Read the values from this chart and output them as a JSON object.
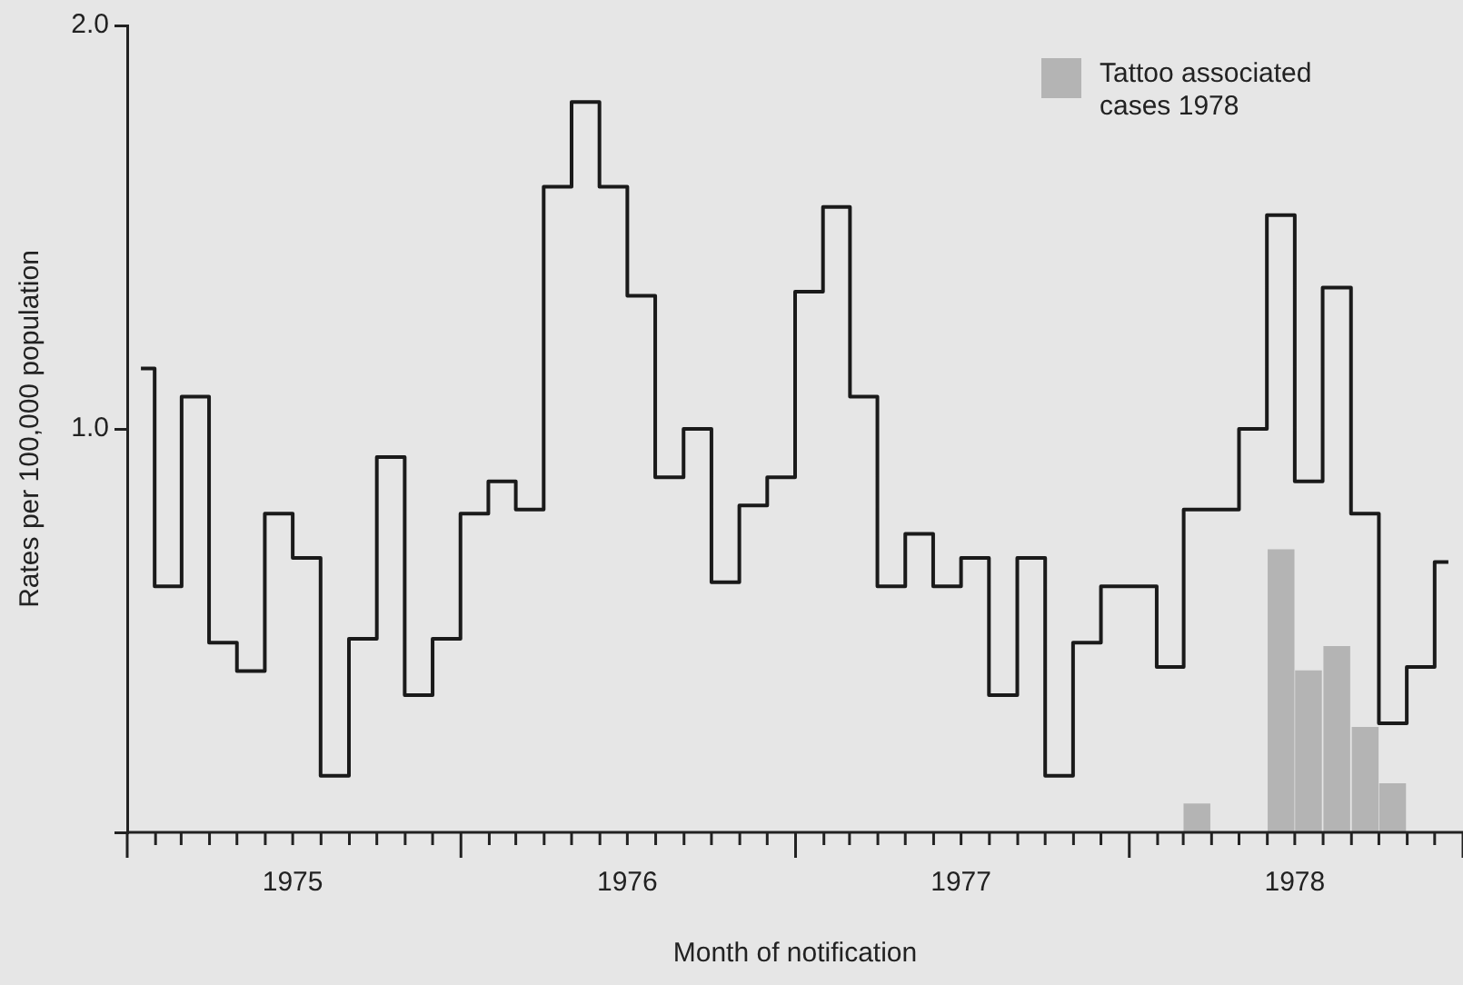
{
  "chart_data": {
    "type": "step",
    "xlabel": "Month of notification",
    "ylabel": "Rates per 100,000 population",
    "x": [
      "1975-01-16",
      "1975-02-15",
      "1975-03-16",
      "1975-04-16",
      "1975-05-16",
      "1975-06-16",
      "1975-07-16",
      "1975-08-16",
      "1975-09-16",
      "1975-10-16",
      "1975-11-16",
      "1975-12-16",
      "1976-01-16",
      "1976-02-15",
      "1976-03-16",
      "1976-04-16",
      "1976-05-16",
      "1976-06-16",
      "1976-07-16",
      "1976-08-16",
      "1976-09-16",
      "1976-10-16",
      "1976-11-16",
      "1976-12-16",
      "1977-01-16",
      "1977-02-15",
      "1977-03-16",
      "1977-04-16",
      "1977-05-16",
      "1977-06-16",
      "1977-07-16",
      "1977-08-16",
      "1977-09-16",
      "1977-10-16",
      "1977-11-16",
      "1977-12-16",
      "1978-01-16",
      "1978-02-15",
      "1978-03-16",
      "1978-04-16",
      "1978-05-16",
      "1978-06-16",
      "1978-07-16",
      "1978-08-16",
      "1978-09-16",
      "1978-10-16",
      "1978-11-16",
      "1978-12-16"
    ],
    "xlim": [
      "1975-01",
      "1979-01"
    ],
    "xticks": [
      {
        "value": "1975-01",
        "label": null
      },
      {
        "value": "1975-02",
        "label": null
      },
      {
        "value": "1975-03",
        "label": null
      },
      {
        "value": "1975-04",
        "label": null
      },
      {
        "value": "1975-05",
        "label": null
      },
      {
        "value": "1975-06",
        "label": null
      },
      {
        "value": "1975-07",
        "label": "1975"
      },
      {
        "value": "1975-08",
        "label": null
      },
      {
        "value": "1975-09",
        "label": null
      },
      {
        "value": "1975-10",
        "label": null
      },
      {
        "value": "1975-11",
        "label": null
      },
      {
        "value": "1975-12",
        "label": null
      },
      {
        "value": "1976-01",
        "label": null
      },
      {
        "value": "1976-02",
        "label": null
      },
      {
        "value": "1976-03",
        "label": null
      },
      {
        "value": "1976-04",
        "label": null
      },
      {
        "value": "1976-05",
        "label": null
      },
      {
        "value": "1976-06",
        "label": null
      },
      {
        "value": "1976-07",
        "label": "1976"
      },
      {
        "value": "1976-08",
        "label": null
      },
      {
        "value": "1976-09",
        "label": null
      },
      {
        "value": "1976-10",
        "label": null
      },
      {
        "value": "1976-11",
        "label": null
      },
      {
        "value": "1976-12",
        "label": null
      },
      {
        "value": "1977-01",
        "label": null
      },
      {
        "value": "1977-02",
        "label": null
      },
      {
        "value": "1977-03",
        "label": null
      },
      {
        "value": "1977-04",
        "label": null
      },
      {
        "value": "1977-05",
        "label": null
      },
      {
        "value": "1977-06",
        "label": null
      },
      {
        "value": "1977-07",
        "label": "1977"
      },
      {
        "value": "1977-08",
        "label": null
      },
      {
        "value": "1977-09",
        "label": null
      },
      {
        "value": "1977-10",
        "label": null
      },
      {
        "value": "1977-11",
        "label": null
      },
      {
        "value": "1977-12",
        "label": null
      },
      {
        "value": "1978-01",
        "label": null
      },
      {
        "value": "1978-02",
        "label": null
      },
      {
        "value": "1978-03",
        "label": null
      },
      {
        "value": "1978-04",
        "label": null
      },
      {
        "value": "1978-05",
        "label": null
      },
      {
        "value": "1978-06",
        "label": null
      },
      {
        "value": "1978-07",
        "label": "1978"
      },
      {
        "value": "1978-08",
        "label": null
      },
      {
        "value": "1978-09",
        "label": null
      },
      {
        "value": "1978-10",
        "label": null
      },
      {
        "value": "1978-11",
        "label": null
      },
      {
        "value": "1978-12",
        "label": null
      },
      {
        "value": "1979-01",
        "label": null
      }
    ],
    "ylim": [
      0,
      2
    ],
    "yticks": [
      {
        "value": 0,
        "label": null
      },
      {
        "value": 1,
        "label": "1.0"
      },
      {
        "value": 2,
        "label": "2.0"
      }
    ],
    "legend": "top right",
    "marker": "none",
    "series": [
      {
        "color": "#1a1a1a",
        "values": [
          1.15,
          0.61,
          1.08,
          0.47,
          0.4,
          0.79,
          0.68,
          0.14,
          0.48,
          0.93,
          0.34,
          0.48,
          0.79,
          0.87,
          0.8,
          1.6,
          1.81,
          1.6,
          1.33,
          0.88,
          1.0,
          0.62,
          0.81,
          0.88,
          1.34,
          1.55,
          1.08,
          0.61,
          0.74,
          0.61,
          0.68,
          0.34,
          0.68,
          0.14,
          0.47,
          0.61,
          0.61,
          0.41,
          0.8,
          0.8,
          1.0,
          1.53,
          0.87,
          1.35,
          0.79,
          0.27,
          0.41,
          0.67
        ]
      },
      {
        "type": "bar",
        "name": "Tattoo associated cases 1978",
        "color": "#b4b4b4",
        "x": [
          "1978-03-16",
          "1978-06-16",
          "1978-07-16",
          "1978-08-16",
          "1978-09-16",
          "1978-10-16"
        ],
        "values": [
          0.07,
          0.7,
          0.4,
          0.46,
          0.26,
          0.12
        ]
      }
    ]
  }
}
